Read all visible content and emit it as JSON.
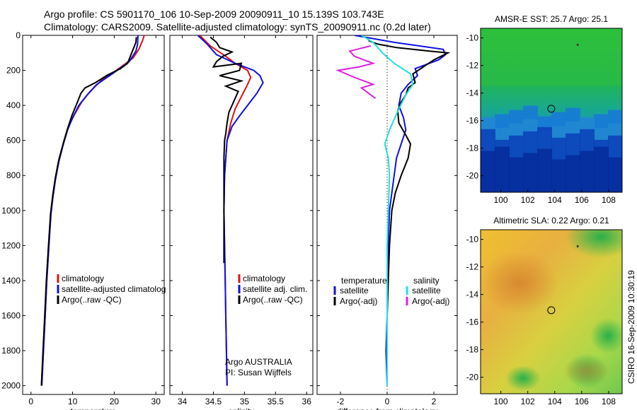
{
  "header": {
    "line1": "Argo profile: CS 5901170_106 10-Sep-2009 20090911_10 15.139S 103.743E",
    "line2": "Climatology: CARS2009. Satellite-adjusted climatology: synTS_20090911.nc (0.2d later)"
  },
  "side_label": "CSIRO 16-Sep-2009 10:30:19",
  "colors": {
    "climatology": "#e01010",
    "satellite": "#1010e0",
    "argo": "#000000",
    "salinity_satellite": "#20e0e0",
    "salinity_argo": "#e020e0"
  },
  "chart_data": [
    {
      "type": "line",
      "id": "temperature",
      "xlabel": "temperature",
      "ylabel": "",
      "xlim": [
        -2,
        32
      ],
      "ylim": [
        2050,
        0
      ],
      "xticks": [
        0,
        10,
        20,
        30
      ],
      "yticks": [
        0,
        200,
        400,
        600,
        800,
        1000,
        1200,
        1400,
        1600,
        1800,
        2000
      ],
      "legend": [
        "climatology",
        "satellite-adjusted climatolog",
        "Argo(..raw -QC)"
      ],
      "series": [
        {
          "name": "climatology",
          "color": "climatology",
          "points": [
            [
              27.2,
              0
            ],
            [
              26.8,
              30
            ],
            [
              25.9,
              80
            ],
            [
              24.5,
              130
            ],
            [
              20.5,
              200
            ],
            [
              16.8,
              260
            ],
            [
              14.2,
              320
            ],
            [
              12.2,
              380
            ],
            [
              10.5,
              450
            ],
            [
              9,
              520
            ],
            [
              8,
              600
            ],
            [
              6.8,
              700
            ],
            [
              6,
              800
            ],
            [
              5.3,
              900
            ],
            [
              4.8,
              1000
            ],
            [
              4.3,
              1200
            ],
            [
              3.8,
              1400
            ],
            [
              3.4,
              1600
            ],
            [
              3,
              1800
            ],
            [
              2.5,
              2000
            ]
          ]
        },
        {
          "name": "satellite-adjusted climatolog",
          "color": "satellite",
          "points": [
            [
              25.7,
              0
            ],
            [
              25.6,
              50
            ],
            [
              25.2,
              90
            ],
            [
              23.6,
              150
            ],
            [
              19.5,
              220
            ],
            [
              15.8,
              280
            ],
            [
              13.5,
              340
            ],
            [
              11.5,
              400
            ],
            [
              10,
              470
            ],
            [
              8.8,
              540
            ],
            [
              7.8,
              620
            ],
            [
              6.7,
              720
            ],
            [
              5.9,
              820
            ],
            [
              5.3,
              920
            ],
            [
              4.8,
              1020
            ],
            [
              4.3,
              1200
            ],
            [
              3.8,
              1400
            ],
            [
              3.4,
              1600
            ],
            [
              3,
              1800
            ],
            [
              2.6,
              2000
            ]
          ]
        },
        {
          "name": "Argo(..raw -QC)",
          "color": "argo",
          "points": [
            [
              25.3,
              10
            ],
            [
              25.2,
              40
            ],
            [
              24.7,
              70
            ],
            [
              24.2,
              100
            ],
            [
              23.2,
              160
            ],
            [
              21.5,
              190
            ],
            [
              18.5,
              225
            ],
            [
              15.5,
              270
            ],
            [
              13,
              300
            ],
            [
              12,
              330
            ],
            [
              11,
              390
            ],
            [
              9.8,
              460
            ],
            [
              8.7,
              540
            ],
            [
              7.7,
              620
            ],
            [
              6.6,
              720
            ],
            [
              5.8,
              820
            ],
            [
              5.2,
              920
            ],
            [
              4.7,
              1020
            ],
            [
              4.2,
              1200
            ],
            [
              3.7,
              1400
            ],
            [
              3.3,
              1600
            ],
            [
              2.9,
              1800
            ],
            [
              2.5,
              2000
            ]
          ]
        }
      ]
    },
    {
      "type": "line",
      "id": "salinity",
      "xlabel": "salinity",
      "xlim": [
        33.8,
        36.1
      ],
      "ylim": [
        2050,
        0
      ],
      "xticks": [
        34,
        34.5,
        35,
        35.5,
        36
      ],
      "legend": [
        "climatology",
        "satellite adj. clim.",
        "Argo(..raw -QC)"
      ],
      "notes": [
        "Argo AUSTRALIA",
        "PI: Susan Wijffels"
      ],
      "series": [
        {
          "name": "climatology",
          "color": "climatology",
          "points": [
            [
              34.28,
              0
            ],
            [
              34.45,
              60
            ],
            [
              34.7,
              120
            ],
            [
              34.85,
              160
            ],
            [
              35.05,
              200
            ],
            [
              35.1,
              240
            ],
            [
              35.05,
              280
            ],
            [
              34.95,
              350
            ],
            [
              34.85,
              420
            ],
            [
              34.78,
              500
            ],
            [
              34.72,
              600
            ],
            [
              34.68,
              800
            ],
            [
              34.67,
              1000
            ],
            [
              34.68,
              1200
            ],
            [
              34.69,
              1400
            ],
            [
              34.7,
              1600
            ],
            [
              34.71,
              1800
            ],
            [
              34.72,
              2000
            ]
          ]
        },
        {
          "name": "satellite adj. clim.",
          "color": "satellite",
          "points": [
            [
              34.25,
              0
            ],
            [
              34.4,
              50
            ],
            [
              34.55,
              110
            ],
            [
              34.85,
              160
            ],
            [
              35.15,
              200
            ],
            [
              35.25,
              230
            ],
            [
              35.3,
              270
            ],
            [
              35.2,
              330
            ],
            [
              35.05,
              400
            ],
            [
              34.92,
              460
            ],
            [
              34.8,
              520
            ],
            [
              34.72,
              600
            ],
            [
              34.68,
              800
            ],
            [
              34.67,
              1000
            ],
            [
              34.68,
              1200
            ],
            [
              34.69,
              1400
            ],
            [
              34.7,
              1600
            ],
            [
              34.71,
              1800
            ],
            [
              34.72,
              2000
            ]
          ]
        },
        {
          "name": "Argo(..raw -QC)",
          "color": "argo",
          "points": [
            [
              34.45,
              10
            ],
            [
              34.55,
              40
            ],
            [
              34.6,
              70
            ],
            [
              34.8,
              95
            ],
            [
              34.65,
              120
            ],
            [
              34.55,
              150
            ],
            [
              34.5,
              180
            ],
            [
              34.95,
              160
            ],
            [
              34.92,
              200
            ],
            [
              34.6,
              230
            ],
            [
              34.95,
              260
            ],
            [
              34.7,
              290
            ],
            [
              34.9,
              320
            ],
            [
              34.85,
              360
            ],
            [
              34.75,
              440
            ],
            [
              34.72,
              500
            ],
            [
              34.7,
              560
            ],
            [
              34.68,
              600
            ],
            [
              34.67,
              700
            ],
            [
              34.67,
              900
            ],
            [
              34.67,
              1100
            ],
            [
              34.67,
              1300
            ]
          ]
        }
      ]
    },
    {
      "type": "line",
      "id": "difference",
      "xlabel": "difference from climatology",
      "xlim": [
        -3,
        3
      ],
      "ylim": [
        2050,
        0
      ],
      "xticks": [
        -2,
        0,
        2
      ],
      "legend_groups": [
        {
          "heading": "temperature",
          "items": [
            "satellite",
            "Argo(-adj)"
          ]
        },
        {
          "heading": "salinity",
          "items": [
            "satellite",
            "Argo(-adj)"
          ]
        }
      ],
      "series": [
        {
          "name": "temperature satellite",
          "color": "satellite",
          "points": [
            [
              -1.4,
              0
            ],
            [
              0.3,
              40
            ],
            [
              2.4,
              80
            ],
            [
              2.5,
              110
            ],
            [
              2.2,
              140
            ],
            [
              1.2,
              190
            ],
            [
              1.3,
              230
            ],
            [
              0.9,
              280
            ],
            [
              0.6,
              330
            ],
            [
              0.5,
              400
            ],
            [
              0.7,
              470
            ],
            [
              0.8,
              540
            ],
            [
              0.6,
              620
            ],
            [
              0.4,
              700
            ],
            [
              0.3,
              800
            ],
            [
              0.2,
              900
            ],
            [
              0.1,
              1000
            ],
            [
              0.05,
              1200
            ],
            [
              0,
              1400
            ],
            [
              0,
              1600
            ],
            [
              -0.05,
              1800
            ],
            [
              0,
              2000
            ]
          ]
        },
        {
          "name": "temperature Argo(-adj)",
          "color": "argo",
          "points": [
            [
              -0.8,
              30
            ],
            [
              -0.4,
              50
            ],
            [
              0.4,
              70
            ],
            [
              1.8,
              90
            ],
            [
              2.6,
              100
            ],
            [
              2,
              140
            ],
            [
              1.1,
              220
            ],
            [
              1.2,
              270
            ],
            [
              0.9,
              300
            ],
            [
              0.8,
              340
            ],
            [
              0.6,
              380
            ],
            [
              0.45,
              430
            ],
            [
              0.5,
              500
            ],
            [
              0.8,
              570
            ],
            [
              1,
              620
            ],
            [
              0.9,
              700
            ],
            [
              0.6,
              800
            ],
            [
              0.35,
              900
            ],
            [
              0.2,
              1000
            ],
            [
              0.1,
              1200
            ],
            [
              0.05,
              1400
            ],
            [
              0,
              1600
            ]
          ]
        },
        {
          "name": "salinity satellite",
          "color": "salinity_satellite",
          "points": [
            [
              -1.1,
              0
            ],
            [
              -0.6,
              40
            ],
            [
              -0.2,
              100
            ],
            [
              0.3,
              160
            ],
            [
              1,
              220
            ],
            [
              1.1,
              280
            ],
            [
              0.8,
              340
            ],
            [
              0.5,
              420
            ],
            [
              0.3,
              480
            ],
            [
              0.1,
              540
            ],
            [
              0,
              580
            ],
            [
              -0.1,
              620
            ],
            [
              0.05,
              700
            ],
            [
              0.1,
              800
            ],
            [
              0.05,
              1000
            ],
            [
              0,
              1200
            ],
            [
              0,
              1600
            ],
            [
              0,
              2000
            ]
          ]
        },
        {
          "name": "salinity Argo(-adj)",
          "color": "salinity_argo",
          "points": [
            [
              -0.7,
              60
            ],
            [
              -1.6,
              90
            ],
            [
              -1.4,
              120
            ],
            [
              -0.6,
              160
            ],
            [
              -1.2,
              180
            ],
            [
              -2.1,
              200
            ],
            [
              -1.4,
              240
            ],
            [
              -0.6,
              280
            ],
            [
              -1.1,
              300
            ],
            [
              -0.8,
              330
            ],
            [
              -0.5,
              360
            ]
          ]
        }
      ]
    },
    {
      "type": "heatmap",
      "id": "sst",
      "title": "AMSR-E SST: 25.7 Argo: 25.1",
      "xlim": [
        98.5,
        109
      ],
      "ylim": [
        -21.2,
        -9.3
      ],
      "xticks": [
        100,
        102,
        104,
        106,
        108
      ],
      "yticks": [
        -10,
        -12,
        -14,
        -16,
        -18,
        -20
      ],
      "marker": {
        "lon": 103.743,
        "lat": -15.139
      },
      "small_marker": {
        "lon": 105.7,
        "lat": -10.5
      }
    },
    {
      "type": "heatmap",
      "id": "sla",
      "title": "Altimetric SLA: 0.22 Argo: 0.21",
      "xlim": [
        98.5,
        109
      ],
      "ylim": [
        -21.2,
        -9.3
      ],
      "xticks": [
        100,
        102,
        104,
        106,
        108
      ],
      "yticks": [
        -10,
        -12,
        -14,
        -16,
        -18,
        -20
      ],
      "marker": {
        "lon": 103.743,
        "lat": -15.139
      },
      "small_marker": {
        "lon": 105.7,
        "lat": -10.5
      }
    }
  ]
}
